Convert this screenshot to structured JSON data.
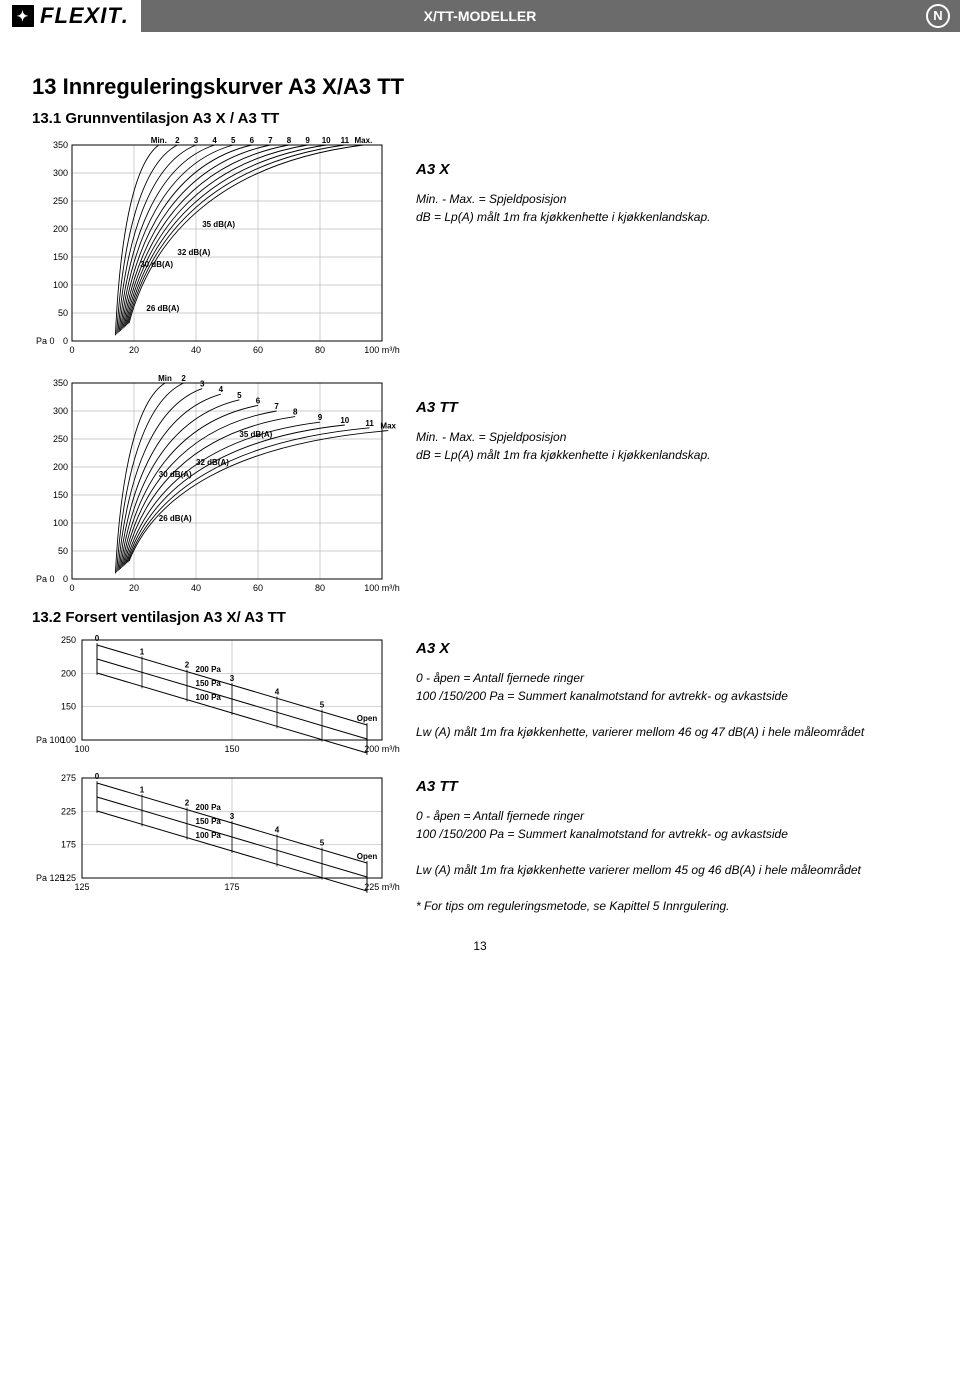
{
  "header": {
    "brand": "FLEXIT",
    "tab_title": "X/TT-MODELLER",
    "corner_badge": "N"
  },
  "page_number": "13",
  "main_heading": "13  Innreguleringskurver A3 X/A3 TT",
  "section_13_1": {
    "heading": "13.1  Grunnventilasjon A3 X / A3 TT",
    "charts": [
      {
        "id": "chart_a3x_grunn",
        "title_right": "A3 X",
        "note_right": "Min. - Max. = Spjeldposisjon\ndB = Lp(A) målt 1m fra kjøkkenhette  i kjøkkenlandskap.",
        "y_label_pos": "Pa 0",
        "y_ticks": [
          0,
          50,
          100,
          150,
          200,
          250,
          300,
          350
        ],
        "x_ticks": [
          0,
          20,
          40,
          60,
          80,
          100
        ],
        "x_unit": "m³/h",
        "curve_labels": [
          "Min.",
          "2",
          "3",
          "4",
          "5",
          "6",
          "7",
          "8",
          "9",
          "10",
          "11",
          "Max."
        ],
        "curve_top_x": [
          28,
          34,
          40,
          46,
          52,
          58,
          64,
          70,
          76,
          82,
          88,
          94
        ],
        "db_labels": [
          {
            "text": "35 dB(A)",
            "y": 200,
            "x_txt": 42
          },
          {
            "text": "32 dB(A)",
            "y": 150,
            "x_txt": 34
          },
          {
            "text": "30 dB(A)",
            "y": 150,
            "x_txt": 22,
            "below": true
          },
          {
            "text": "26 dB(A)",
            "y": 50,
            "x_txt": 24
          }
        ],
        "grid_color": "#bbbbbb",
        "border_color": "#000000",
        "curve_color": "#000000",
        "db_line_color": "#000000"
      },
      {
        "id": "chart_a3tt_grunn",
        "title_right": "A3 TT",
        "note_right": "Min. - Max. = Spjeldposisjon\ndB = Lp(A) målt 1m fra kjøkkenhette i kjøkkenlandskap.",
        "y_label_pos": "Pa 0",
        "y_ticks": [
          0,
          50,
          100,
          150,
          200,
          250,
          300,
          350
        ],
        "x_ticks": [
          0,
          20,
          40,
          60,
          80,
          100
        ],
        "x_unit": "m³/h",
        "curve_labels": [
          "Min",
          "2",
          "3",
          "4",
          "5",
          "6",
          "7",
          "8",
          "9",
          "10",
          "11",
          "Max"
        ],
        "curve_top_x": [
          30,
          36,
          42,
          48,
          54,
          60,
          66,
          72,
          80,
          88,
          96,
          102
        ],
        "curve_top_y": [
          350,
          350,
          340,
          330,
          320,
          310,
          300,
          290,
          280,
          275,
          270,
          265
        ],
        "db_labels": [
          {
            "text": "35 dB(A)",
            "y": 250,
            "x_txt": 54
          },
          {
            "text": "32 dB(A)",
            "y": 200,
            "x_txt": 40
          },
          {
            "text": "30 dB(A)",
            "y": 200,
            "x_txt": 28,
            "below": true
          },
          {
            "text": "26 dB(A)",
            "y": 100,
            "x_txt": 28
          }
        ],
        "grid_color": "#bbbbbb",
        "border_color": "#000000",
        "curve_color": "#000000",
        "db_line_color": "#000000"
      }
    ]
  },
  "section_13_2": {
    "heading": "13.2  Forsert ventilasjon A3 X/ A3 TT",
    "charts": [
      {
        "id": "chart_a3x_forsert",
        "title_right": "A3 X",
        "notes_right": [
          "0 - åpen = Antall fjernede ringer",
          "100 /150/200 Pa = Summert kanalmotstand for avtrekk- og avkastside",
          "",
          "Lw (A) målt 1m fra kjøkkenhette, varierer mellom 46 og 47 dB(A) i hele måleområdet"
        ],
        "y_label_pos": "Pa 100",
        "y_ticks": [
          100,
          150,
          200,
          250
        ],
        "x_ticks": [
          100,
          150,
          200
        ],
        "x_unit": "m³/h",
        "ring_labels": [
          "0",
          "1",
          "2",
          "3",
          "4",
          "5",
          "Open"
        ],
        "pa_labels": [
          "200 Pa",
          "150 Pa",
          "100 Pa"
        ],
        "grid_color": "#bbbbbb",
        "border_color": "#000000",
        "line_color": "#000000"
      },
      {
        "id": "chart_a3tt_forsert",
        "title_right": "A3 TT",
        "notes_right": [
          "0 - åpen = Antall fjernede ringer",
          "100 /150/200 Pa = Summert kanalmotstand for avtrekk- og avkastside",
          "",
          "Lw (A) målt 1m fra kjøkkenhette varierer mellom 45 og 46 dB(A) i hele måleområdet",
          "",
          "* For tips om reguleringsmetode, se Kapittel 5 Innrgulering."
        ],
        "y_label_pos": "Pa 125",
        "y_ticks": [
          125,
          175,
          225,
          275
        ],
        "x_ticks": [
          125,
          175,
          225
        ],
        "x_unit": "m³/h",
        "ring_labels": [
          "0",
          "1",
          "2",
          "3",
          "4",
          "5",
          "Open"
        ],
        "pa_labels": [
          "200 Pa",
          "150 Pa",
          "100 Pa"
        ],
        "grid_color": "#bbbbbb",
        "border_color": "#000000",
        "line_color": "#000000"
      }
    ]
  }
}
